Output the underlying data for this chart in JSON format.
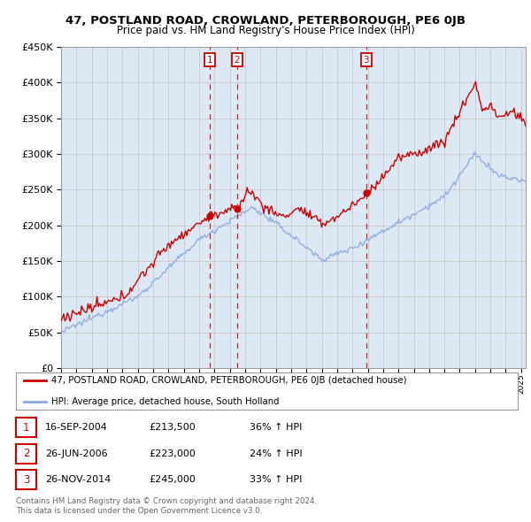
{
  "title": "47, POSTLAND ROAD, CROWLAND, PETERBOROUGH, PE6 0JB",
  "subtitle": "Price paid vs. HM Land Registry's House Price Index (HPI)",
  "legend_line1": "47, POSTLAND ROAD, CROWLAND, PETERBOROUGH, PE6 0JB (detached house)",
  "legend_line2": "HPI: Average price, detached house, South Holland",
  "footer1": "Contains HM Land Registry data © Crown copyright and database right 2024.",
  "footer2": "This data is licensed under the Open Government Licence v3.0.",
  "sales": [
    {
      "num": 1,
      "date": "16-SEP-2004",
      "price": "£213,500",
      "pct": "36%",
      "dir": "↑",
      "year": 2004.71
    },
    {
      "num": 2,
      "date": "26-JUN-2006",
      "price": "£223,000",
      "pct": "24%",
      "dir": "↑",
      "year": 2006.48
    },
    {
      "num": 3,
      "date": "26-NOV-2014",
      "price": "£245,000",
      "pct": "33%",
      "dir": "↑",
      "year": 2014.9
    }
  ],
  "sale_values": [
    213500,
    223000,
    245000
  ],
  "ylim": [
    0,
    450000
  ],
  "xlim_start": 1995.0,
  "xlim_end": 2025.3,
  "red_color": "#cc0000",
  "blue_color": "#88aadd",
  "grid_color": "#cccccc",
  "bg_color": "#dde8f5",
  "sale_marker_color": "#cc0000",
  "title_fontsize": 9.5,
  "subtitle_fontsize": 8.5
}
